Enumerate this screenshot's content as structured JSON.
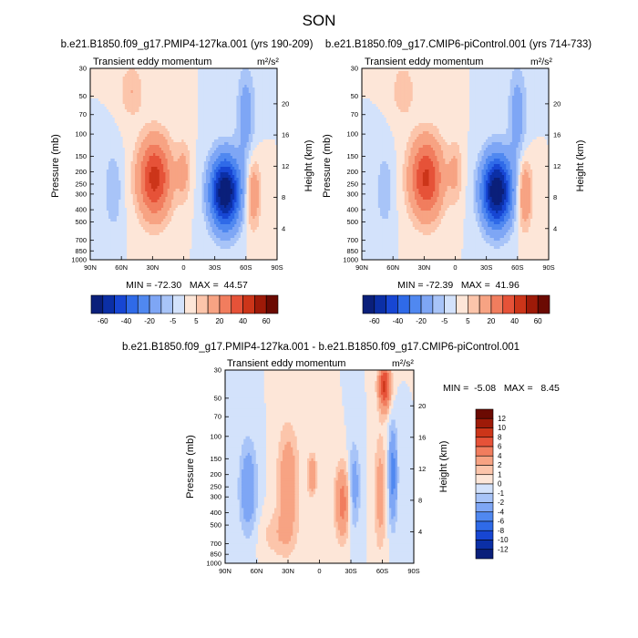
{
  "figure": {
    "season": "SON"
  },
  "colors": {
    "panel_scale": [
      "#0a1f7a",
      "#0b2fa6",
      "#1746d3",
      "#2f6ae8",
      "#5088f0",
      "#7ea6f5",
      "#a8c4f8",
      "#d3e2fb",
      "#fde6d8",
      "#fcc5ab",
      "#f7a383",
      "#f17d5e",
      "#e65238",
      "#cc3519",
      "#9e1a08",
      "#6b0a02"
    ],
    "diff_scale": [
      "#0a1f7a",
      "#0b2fa6",
      "#1746d3",
      "#2f6ae8",
      "#5088f0",
      "#7ea6f5",
      "#a8c4f8",
      "#d3e2fb",
      "#fde6d8",
      "#fcc5ab",
      "#f7a383",
      "#f17d5e",
      "#e65238",
      "#cc3519",
      "#9e1a08",
      "#6b0a02"
    ]
  },
  "chart_data": [
    {
      "type": "heatmap",
      "title": "b.e21.B1850.f09_g17.PMIP4-127ka.001 (yrs 190-209)",
      "left_label": "Transient eddy momentum",
      "units": "m²/s²",
      "xlabel": "",
      "ylabel": "Pressure (mb)",
      "ylabel_right": "Height (km)",
      "x_ticks": [
        "90N",
        "60N",
        "30N",
        "0",
        "30S",
        "60S",
        "90S"
      ],
      "y_ticks": [
        "30",
        "50",
        "70",
        "100",
        "150",
        "200",
        "250",
        "300",
        "400",
        "500",
        "700",
        "850",
        "1000"
      ],
      "y_ticks_right": [
        "20",
        "16",
        "12",
        "8",
        "4"
      ],
      "min_label": "MIN = -72.30   MAX =  44.57",
      "colorbar_labels": [
        "-60",
        "-40",
        "-20",
        "-5",
        "5",
        "20",
        "40",
        "60"
      ],
      "features": [
        {
          "lat": 28,
          "p": 225,
          "value": 44,
          "sx": 11,
          "sy": 0.5
        },
        {
          "lat": -40,
          "p": 290,
          "value": -72,
          "sx": 10,
          "sy": 0.45
        },
        {
          "lat": 0,
          "p": 200,
          "value": 12,
          "sx": 5,
          "sy": 0.4
        },
        {
          "lat": -67,
          "p": 300,
          "value": 18,
          "sx": 5,
          "sy": 0.45
        },
        {
          "lat": 68,
          "p": 280,
          "value": -10,
          "sx": 6,
          "sy": 0.5
        },
        {
          "lat": 50,
          "p": 45,
          "value": 10,
          "sx": 8,
          "sy": 0.35
        },
        {
          "lat": -60,
          "p": 70,
          "value": -15,
          "sx": 6,
          "sy": 0.6
        }
      ]
    },
    {
      "type": "heatmap",
      "title": "b.e21.B1850.f09_g17.CMIP6-piControl.001 (yrs 714-733)",
      "left_label": "Transient eddy momentum",
      "units": "m²/s²",
      "xlabel": "",
      "ylabel": "Pressure (mb)",
      "ylabel_right": "Height (km)",
      "x_ticks": [
        "90N",
        "60N",
        "30N",
        "0",
        "30S",
        "60S",
        "90S"
      ],
      "y_ticks": [
        "30",
        "50",
        "70",
        "100",
        "150",
        "200",
        "250",
        "300",
        "400",
        "500",
        "700",
        "850",
        "1000"
      ],
      "y_ticks_right": [
        "20",
        "16",
        "12",
        "8",
        "4"
      ],
      "min_label": "MIN = -72.39   MAX =  41.96",
      "colorbar_labels": [
        "-60",
        "-40",
        "-20",
        "-5",
        "5",
        "20",
        "40",
        "60"
      ],
      "features": [
        {
          "lat": 28,
          "p": 225,
          "value": 42,
          "sx": 11,
          "sy": 0.5
        },
        {
          "lat": -40,
          "p": 285,
          "value": -72,
          "sx": 10,
          "sy": 0.45
        },
        {
          "lat": 0,
          "p": 200,
          "value": 11,
          "sx": 5,
          "sy": 0.4
        },
        {
          "lat": -67,
          "p": 300,
          "value": 20,
          "sx": 5,
          "sy": 0.45
        },
        {
          "lat": 68,
          "p": 280,
          "value": -9,
          "sx": 6,
          "sy": 0.5
        },
        {
          "lat": 50,
          "p": 45,
          "value": 9,
          "sx": 8,
          "sy": 0.35
        },
        {
          "lat": -60,
          "p": 70,
          "value": -15,
          "sx": 6,
          "sy": 0.6
        }
      ]
    },
    {
      "type": "heatmap",
      "title": "b.e21.B1850.f09_g17.PMIP4-127ka.001 - b.e21.B1850.f09_g17.CMIP6-piControl.001",
      "left_label": "Transient eddy momentum",
      "units": "m²/s²",
      "xlabel": "",
      "ylabel": "Pressure (mb)",
      "ylabel_right": "Height (km)",
      "x_ticks": [
        "90N",
        "60N",
        "30N",
        "0",
        "30S",
        "60S",
        "90S"
      ],
      "y_ticks": [
        "30",
        "50",
        "70",
        "100",
        "150",
        "200",
        "250",
        "300",
        "400",
        "500",
        "700",
        "850",
        "1000"
      ],
      "y_ticks_right": [
        "20",
        "16",
        "12",
        "8",
        "4"
      ],
      "min_label": "MIN =  -5.08   MAX =   8.45",
      "colorbar_labels": [
        "12",
        "10",
        "8",
        "6",
        "4",
        "2",
        "1",
        "0",
        "-1",
        "-2",
        "-4",
        "-6",
        "-8",
        "-10",
        "-12"
      ],
      "features": [
        {
          "lat": 68,
          "p": 260,
          "value": -3.5,
          "sx": 6,
          "sy": 0.6
        },
        {
          "lat": 30,
          "p": 230,
          "value": 3.5,
          "sx": 7,
          "sy": 0.7
        },
        {
          "lat": 7,
          "p": 200,
          "value": 4,
          "sx": 3,
          "sy": 0.25
        },
        {
          "lat": -22,
          "p": 330,
          "value": 5,
          "sx": 5,
          "sy": 0.45
        },
        {
          "lat": -33,
          "p": 250,
          "value": -3,
          "sx": 4,
          "sy": 0.55
        },
        {
          "lat": -62,
          "p": 40,
          "value": 8.45,
          "sx": 4,
          "sy": 0.3
        },
        {
          "lat": -58,
          "p": 280,
          "value": 3,
          "sx": 4,
          "sy": 0.7
        },
        {
          "lat": -70,
          "p": 200,
          "value": -5,
          "sx": 3,
          "sy": 0.6
        },
        {
          "lat": 40,
          "p": 600,
          "value": 1.5,
          "sx": 12,
          "sy": 0.3
        }
      ]
    }
  ]
}
